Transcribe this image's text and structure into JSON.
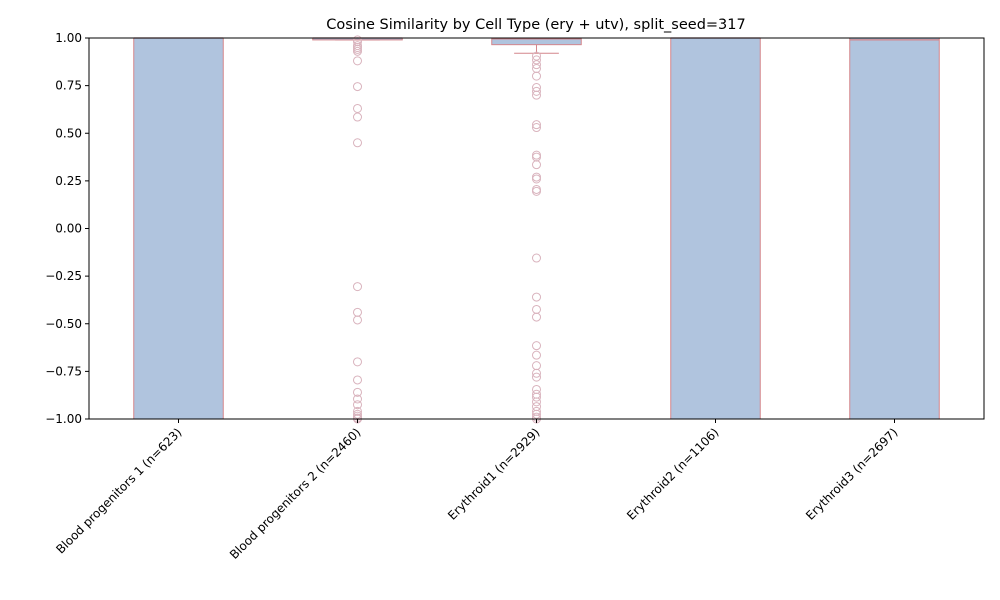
{
  "chart_data": {
    "type": "boxplot",
    "title": "Cosine Similarity by Cell Type (ery + utv), split_seed=317",
    "xlabel": "",
    "ylabel": "",
    "ylim": [
      -1.0,
      1.0
    ],
    "yticks": [
      -1.0,
      -0.75,
      -0.5,
      -0.25,
      0.0,
      0.25,
      0.5,
      0.75,
      1.0
    ],
    "ytick_labels": [
      "−1.00",
      "−0.75",
      "−0.50",
      "−0.25",
      "0.00",
      "0.25",
      "0.50",
      "0.75",
      "1.00"
    ],
    "grid": false,
    "colors": {
      "box_fill": "#b0c4de",
      "box_edge": "#d4868c",
      "flier": "#d9b3bd"
    },
    "categories": [
      "Blood progenitors 1 (n=623)",
      "Blood progenitors 2 (n=2460)",
      "Erythroid1 (n=2929)",
      "Erythroid2 (n=1106)",
      "Erythroid3 (n=2697)"
    ],
    "boxes": [
      {
        "q1": -1.0,
        "median": 1.0,
        "q3": 1.0,
        "whisker_low": -1.0,
        "whisker_high": 1.0,
        "fliers": []
      },
      {
        "q1": 0.99,
        "median": 1.0,
        "q3": 1.0,
        "whisker_low": 0.99,
        "whisker_high": 1.0,
        "fliers": [
          0.99,
          0.98,
          0.96,
          0.95,
          0.94,
          0.93,
          0.88,
          0.745,
          0.63,
          0.585,
          0.45,
          -0.305,
          -0.44,
          -0.48,
          -0.7,
          -0.795,
          -0.86,
          -0.895,
          -0.925,
          -0.96,
          -0.975,
          -0.985,
          -0.995,
          -1.0
        ]
      },
      {
        "q1": 0.965,
        "median": 0.995,
        "q3": 1.0,
        "whisker_low": 0.92,
        "whisker_high": 1.0,
        "fliers": [
          0.905,
          0.885,
          0.86,
          0.84,
          0.8,
          0.74,
          0.72,
          0.7,
          0.545,
          0.53,
          0.385,
          0.375,
          0.335,
          0.27,
          0.26,
          0.205,
          0.195,
          -0.155,
          -0.36,
          -0.425,
          -0.465,
          -0.615,
          -0.665,
          -0.72,
          -0.76,
          -0.78,
          -0.845,
          -0.87,
          -0.885,
          -0.91,
          -0.935,
          -0.96,
          -0.975,
          -0.99,
          -1.0
        ]
      },
      {
        "q1": -1.0,
        "median": 1.0,
        "q3": 1.0,
        "whisker_low": -1.0,
        "whisker_high": 1.0,
        "fliers": []
      },
      {
        "q1": -1.0,
        "median": 0.99,
        "q3": 1.0,
        "whisker_low": -1.0,
        "whisker_high": 1.0,
        "fliers": []
      }
    ]
  }
}
